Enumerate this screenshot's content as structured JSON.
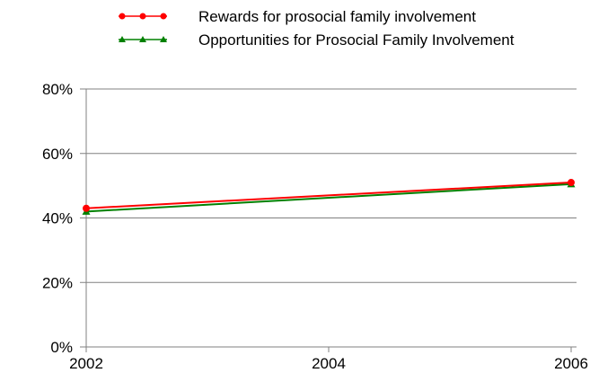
{
  "chart_data": {
    "type": "line",
    "title": "",
    "xlabel": "",
    "ylabel": "",
    "x": [
      2002,
      2006
    ],
    "x_ticks": [
      "2002",
      "2004",
      "2006"
    ],
    "y_ticks": [
      "0%",
      "20%",
      "40%",
      "60%",
      "80%"
    ],
    "xlim": [
      2002,
      2006
    ],
    "ylim": [
      0,
      80
    ],
    "grid": true,
    "legend_position": "top",
    "series": [
      {
        "name": "Rewards for prosocial family involvement",
        "values": [
          43,
          51
        ],
        "color": "#ff0000",
        "marker": "circle"
      },
      {
        "name": "Opportunities for Prosocial Family Involvement",
        "values": [
          42,
          50.5
        ],
        "color": "#008000",
        "marker": "triangle"
      }
    ]
  }
}
